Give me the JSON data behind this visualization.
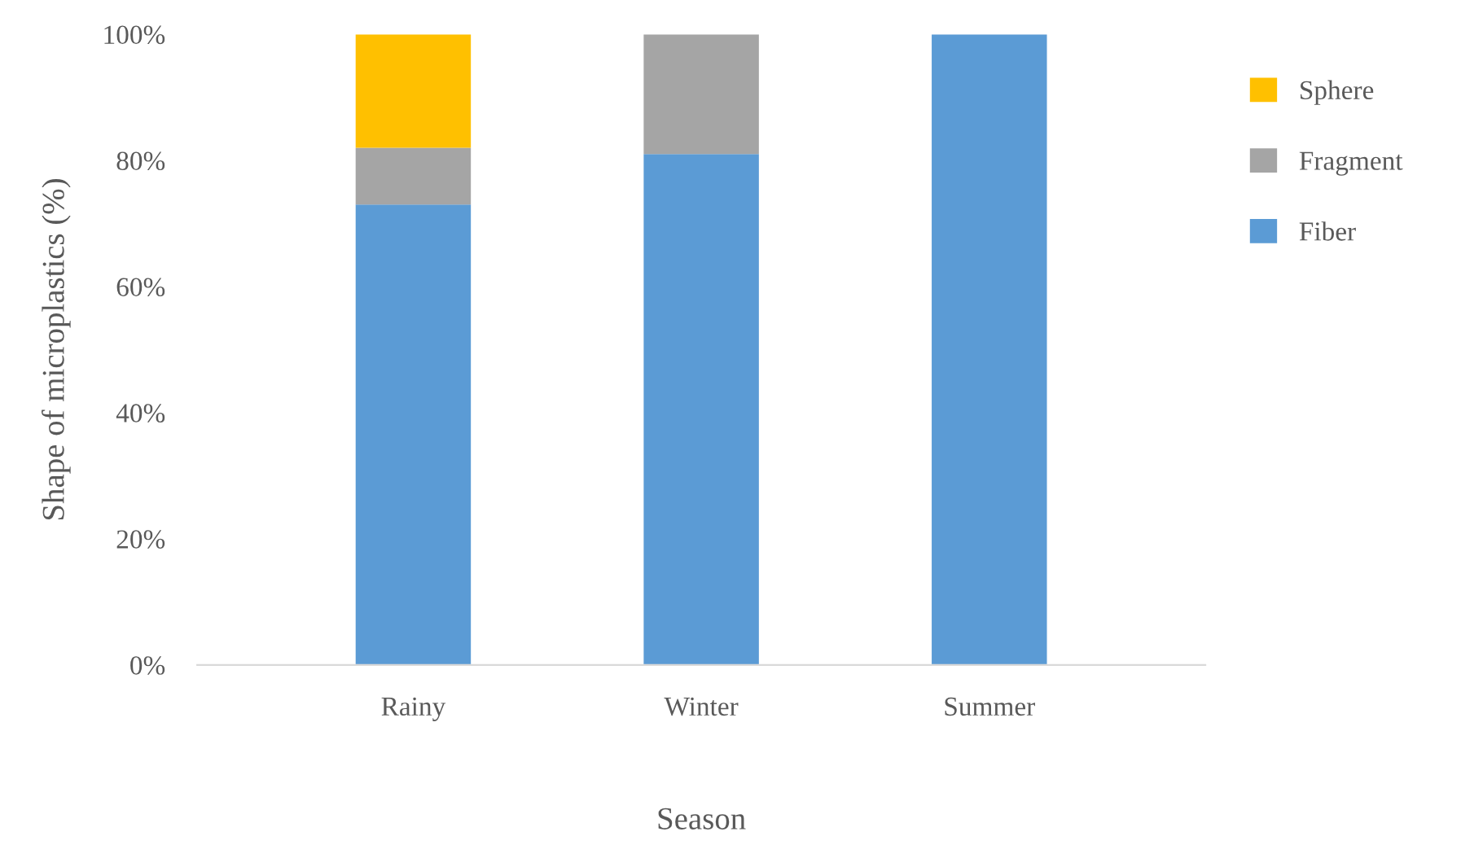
{
  "chart_data": {
    "type": "bar",
    "stacked": true,
    "xlabel": "Season",
    "ylabel": "Shape of microplastics (%)",
    "categories": [
      "Rainy",
      "Winter",
      "Summer"
    ],
    "series": [
      {
        "name": "Fiber",
        "color": "#5b9bd5",
        "values": [
          73,
          81,
          100
        ]
      },
      {
        "name": "Fragment",
        "color": "#a5a5a5",
        "values": [
          9,
          19,
          0
        ]
      },
      {
        "name": "Sphere",
        "color": "#ffc000",
        "values": [
          18,
          0,
          0
        ]
      }
    ],
    "ylim": [
      0,
      100
    ],
    "yticks": [
      {
        "value": 0,
        "label": "0%"
      },
      {
        "value": 20,
        "label": "20%"
      },
      {
        "value": 40,
        "label": "40%"
      },
      {
        "value": 60,
        "label": "60%"
      },
      {
        "value": 80,
        "label": "80%"
      },
      {
        "value": 100,
        "label": "100%"
      }
    ],
    "grid": false,
    "legend": "right"
  }
}
